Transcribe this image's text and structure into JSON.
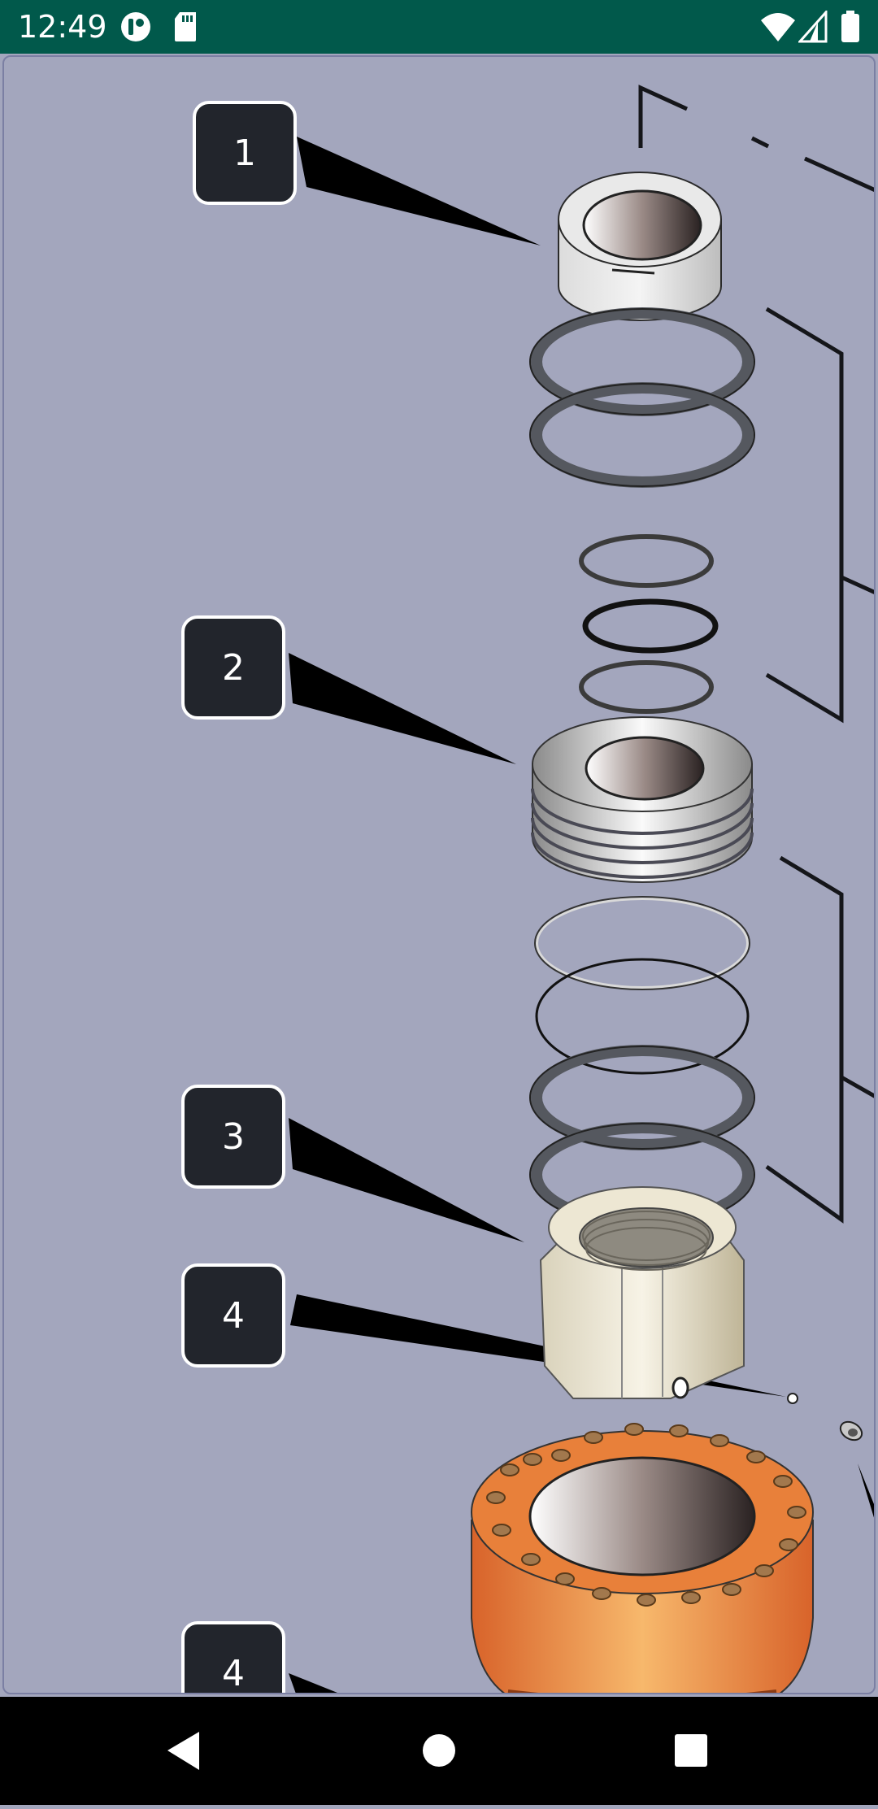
{
  "status_bar": {
    "time": "12:49",
    "icons": [
      "app-notification-icon",
      "sd-card-icon",
      "wifi-icon",
      "cellular-signal-icon",
      "battery-icon"
    ]
  },
  "diagram": {
    "callouts": [
      {
        "label": "1"
      },
      {
        "label": "2"
      },
      {
        "label": "3"
      },
      {
        "label": "4"
      },
      {
        "label": "4"
      }
    ],
    "colors": {
      "background": "#a3a6bd",
      "callout_fill": "#22252c",
      "callout_border": "#ffffff",
      "housing_orange": "#e8803a",
      "seal_gray": "#55585f",
      "nut_cream": "#ede7d3"
    }
  },
  "nav_bar": {
    "buttons": [
      "back-icon",
      "home-icon",
      "recents-icon"
    ]
  }
}
